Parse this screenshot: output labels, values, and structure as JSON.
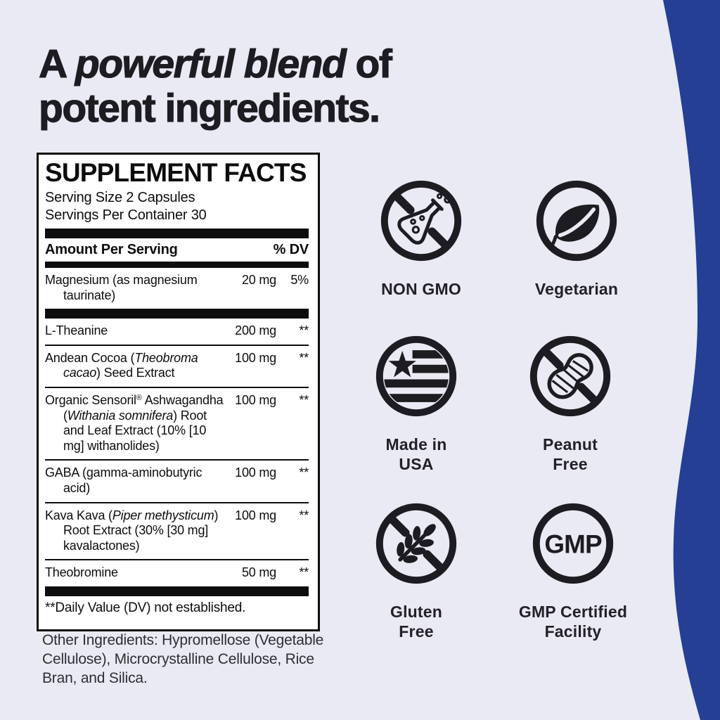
{
  "heading": {
    "line1_pre": "A ",
    "line1_emphasis": "powerful blend",
    "line1_post": " of",
    "line2": "potent ingredients."
  },
  "panel": {
    "title": "SUPPLEMENT FACTS",
    "serving_size": "Serving Size 2 Capsules",
    "servings_per_container": "Servings Per Container 30",
    "columns": {
      "amount": "Amount Per Serving",
      "dv": "% DV"
    },
    "rows": [
      {
        "name": [
          {
            "t": "Magnesium (as magnesium taurinate)"
          }
        ],
        "amount": "20 mg",
        "dv": "5%"
      },
      {
        "divider": "thick"
      },
      {
        "name": [
          {
            "t": "L-Theanine"
          }
        ],
        "amount": "200 mg",
        "dv": "**"
      },
      {
        "name": [
          {
            "t": "Andean Cocoa ("
          },
          {
            "t": "Theobroma cacao",
            "i": true
          },
          {
            "t": ") Seed Extract"
          }
        ],
        "amount": "100 mg",
        "dv": "**"
      },
      {
        "name": [
          {
            "t": "Organic Sensoril"
          },
          {
            "t": "®",
            "sup": true
          },
          {
            "t": " Ashwagandha ("
          },
          {
            "t": "Withania somnifera",
            "i": true
          },
          {
            "t": ") Root and Leaf Extract (10% [10 mg] withanolides)"
          }
        ],
        "amount": "100 mg",
        "dv": "**"
      },
      {
        "name": [
          {
            "t": "GABA (gamma-aminobutyric acid)"
          }
        ],
        "amount": "100 mg",
        "dv": "**"
      },
      {
        "name": [
          {
            "t": "Kava Kava ("
          },
          {
            "t": "Piper methysticum",
            "i": true
          },
          {
            "t": ") Root Extract (30% [30 mg] kavalactones)"
          }
        ],
        "amount": "100 mg",
        "dv": "**"
      },
      {
        "name": [
          {
            "t": "Theobromine"
          }
        ],
        "amount": "50 mg",
        "dv": "**"
      }
    ],
    "footnote": "**Daily Value (DV) not established."
  },
  "other_ingredients": "Other Ingredients: Hypromellose (Vegetable Cellulose), Microcrystalline Cellulose, Rice Bran, and Silica.",
  "badges": [
    {
      "icon": "no-flask-icon",
      "label": "NON GMO"
    },
    {
      "icon": "leaf-icon",
      "label": "Vegetarian"
    },
    {
      "icon": "usa-flag-icon",
      "label": "Made in\nUSA"
    },
    {
      "icon": "no-peanut-icon",
      "label": "Peanut\nFree"
    },
    {
      "icon": "no-wheat-icon",
      "label": "Gluten\nFree"
    },
    {
      "icon": "gmp-seal-icon",
      "label": "GMP Certified\nFacility",
      "icon_text": "GMP"
    }
  ],
  "colors": {
    "background": "#E9EAF4",
    "accent_blue": "#243F94",
    "ink": "#1D1C20",
    "panel_bg": "#FFFFFF"
  }
}
